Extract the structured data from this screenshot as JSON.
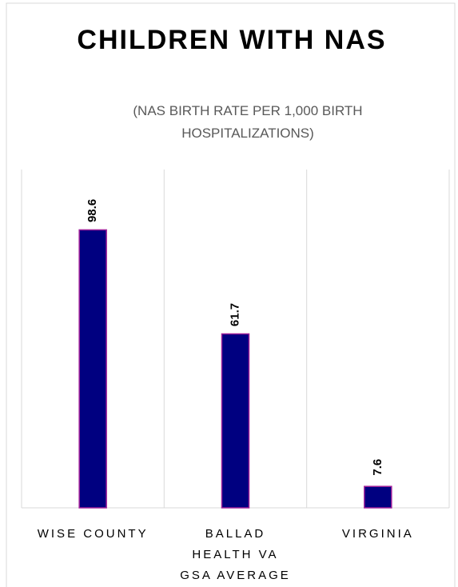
{
  "chart_data": {
    "type": "bar",
    "title": "CHILDREN WITH NAS",
    "subtitle": "(NAS BIRTH RATE PER 1,000 BIRTH HOSPITALIZATIONS)",
    "categories": [
      "WISE COUNTY",
      "BALLAD HEALTH VA GSA AVERAGE",
      "VIRGINIA"
    ],
    "values": [
      98.6,
      61.7,
      7.6
    ],
    "color": "#000080",
    "edge_color": "#a0209a",
    "ylim": [
      0,
      120
    ],
    "grid": true
  }
}
